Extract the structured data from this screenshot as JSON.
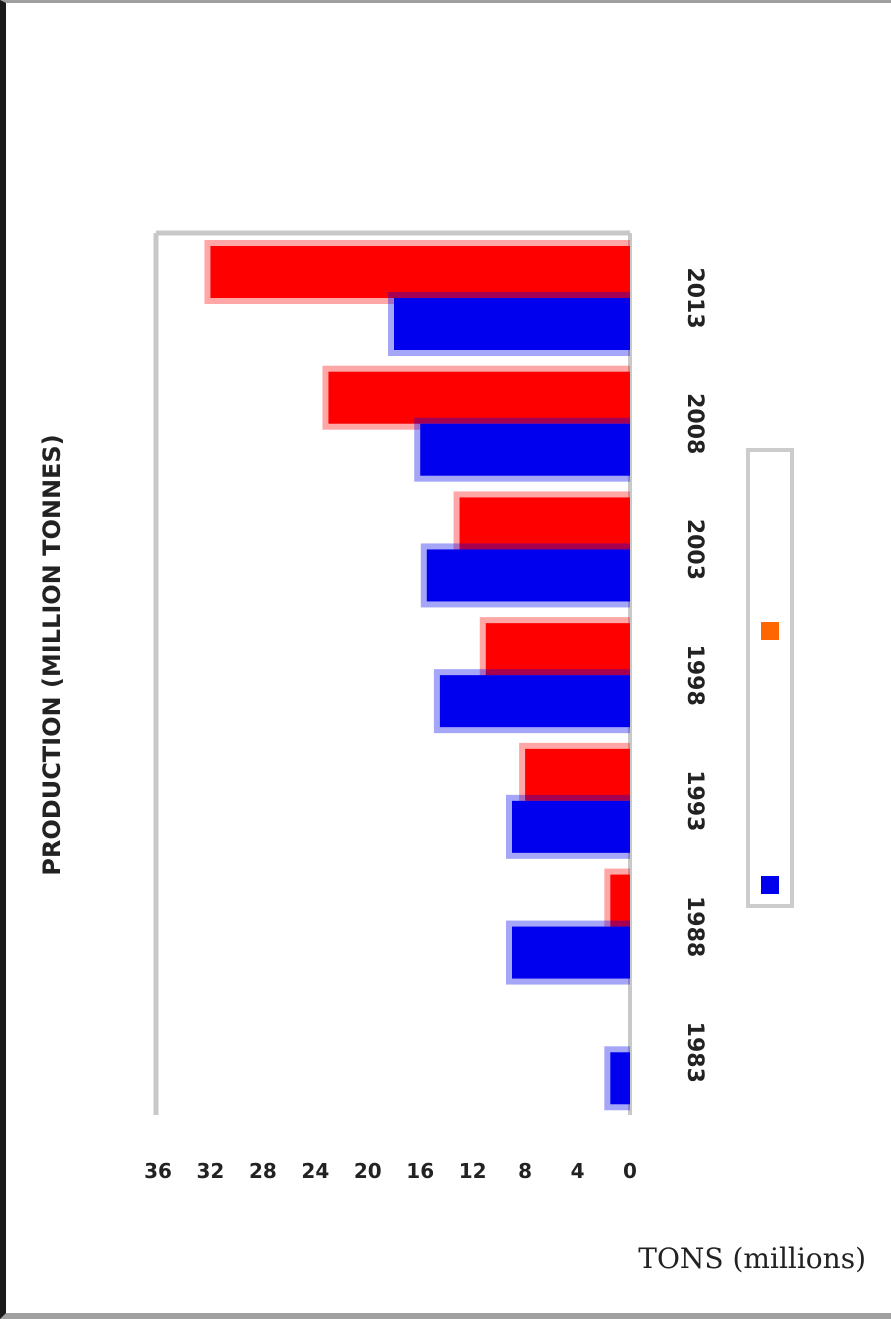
{
  "chart_data": {
    "type": "bar",
    "orientation": "horizontal",
    "title": "PRODUCTION (MILLION TONNES)",
    "xlabel": "TONS (millions)",
    "categories": [
      "2013",
      "2008",
      "2003",
      "1998",
      "1993",
      "1988",
      "1983"
    ],
    "series": [
      {
        "color": "#ff0000",
        "values": [
          32.0,
          23.0,
          13.0,
          11.0,
          8.0,
          1.5,
          0
        ]
      },
      {
        "color": "#0000ee",
        "values": [
          18.0,
          16.0,
          15.5,
          14.5,
          9.0,
          9.0,
          1.5
        ]
      }
    ],
    "xlim": [
      0,
      36
    ],
    "xticks": [
      36,
      32,
      28,
      24,
      20,
      16,
      12,
      8,
      4,
      0
    ],
    "legend_position": "right",
    "grid": false
  }
}
